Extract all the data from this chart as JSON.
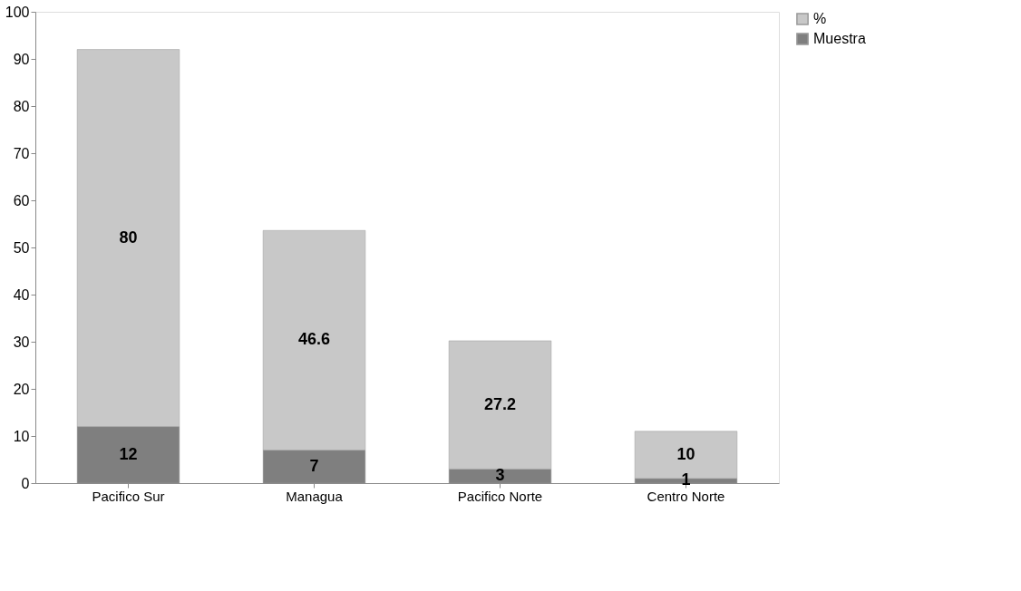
{
  "chart_data": {
    "type": "bar",
    "stacked": true,
    "categories": [
      "Pacifico Sur",
      "Managua",
      "Pacifico Norte",
      "Centro Norte"
    ],
    "series": [
      {
        "name": "Muestra",
        "color": "#7f7f7f",
        "values": [
          12,
          7,
          3,
          1
        ]
      },
      {
        "name": "%",
        "color": "#c8c8c8",
        "values": [
          80,
          46.6,
          27.2,
          10
        ]
      }
    ],
    "ylim": [
      0,
      100
    ],
    "yticks": [
      0,
      10,
      20,
      30,
      40,
      50,
      60,
      70,
      80,
      90,
      100
    ],
    "grid": false,
    "legend": "right",
    "data_labels": true
  }
}
